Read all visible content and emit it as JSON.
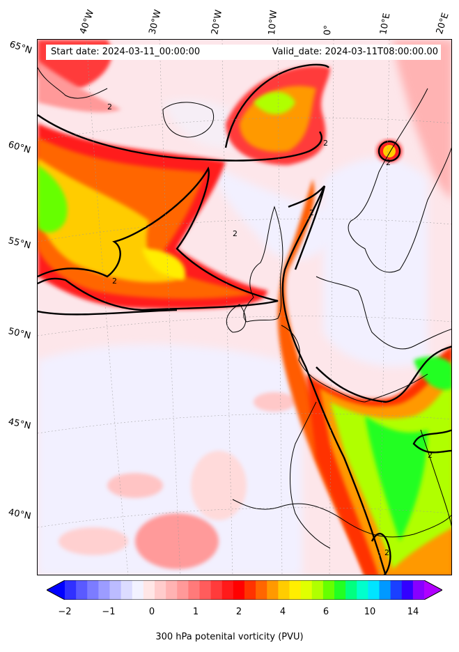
{
  "header": {
    "start_date": "Start date: 2024-03-11_00:00:00",
    "valid_date": "Valid_date: 2024-03-11T08:00:00.00"
  },
  "map": {
    "longitude_labels": [
      "40°W",
      "30°W",
      "20°W",
      "10°W",
      "0°",
      "10°E",
      "20°E"
    ],
    "latitude_labels": [
      "65°N",
      "60°N",
      "55°N",
      "50°N",
      "45°N",
      "40°N"
    ],
    "contour_label": "2",
    "contour_level_pvu": 2
  },
  "colorbar": {
    "label": "300 hPa potenital vorticity (PVU)",
    "ticks": [
      "−2",
      "−1",
      "0",
      "1",
      "2",
      "4",
      "6",
      "10",
      "14"
    ],
    "extend": "both",
    "colors": [
      "#0000ff",
      "#3030ff",
      "#5a5aff",
      "#7c7cff",
      "#9c9cff",
      "#bcbcff",
      "#dcdcff",
      "#f2f2ff",
      "#ffe6e6",
      "#ffcccc",
      "#ffb3b3",
      "#ff9999",
      "#ff7a7a",
      "#ff5c5c",
      "#ff3b3b",
      "#ff1a1a",
      "#ff0000",
      "#ff3300",
      "#ff6600",
      "#ff9900",
      "#ffcc00",
      "#ffee00",
      "#e0ff00",
      "#b0ff00",
      "#66ff00",
      "#22ff22",
      "#00ff80",
      "#00ffcc",
      "#00e5ff",
      "#0099ff",
      "#1a40ff",
      "#3300ff",
      "#8800ff",
      "#b000ff"
    ]
  }
}
